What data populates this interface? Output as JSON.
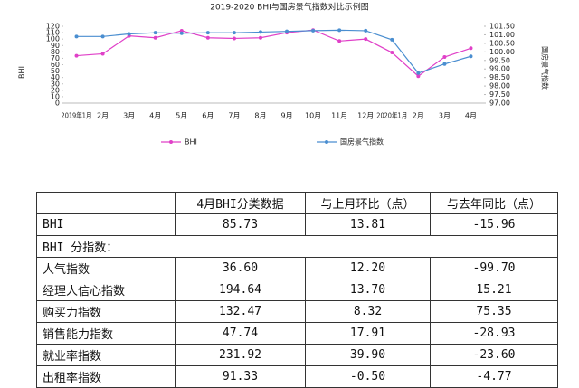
{
  "chart_data": {
    "type": "line",
    "title": "2019-2020 BHI与国房景气指数对比示例图",
    "y_label": "BHI",
    "y2_label": "国房景气指数",
    "categories": [
      "2019年1月",
      "2月",
      "3月",
      "4月",
      "5月",
      "6月",
      "7月",
      "8月",
      "9月",
      "10月",
      "11月",
      "12月",
      "2020年1月",
      "2月",
      "3月",
      "4月"
    ],
    "series": [
      {
        "name": "BHI",
        "color": "#e040c8",
        "values": [
          74,
          77,
          105,
          102,
          113,
          102,
          101,
          102,
          110,
          114,
          97,
          100,
          79,
          42,
          72,
          85.73
        ]
      },
      {
        "name": "国房景气指数",
        "color": "#4a8ed0",
        "axis": "y2",
        "values": [
          100.9,
          100.9,
          101.05,
          101.12,
          101.09,
          101.12,
          101.12,
          101.16,
          101.2,
          101.24,
          101.27,
          101.24,
          100.71,
          98.76,
          99.29,
          99.74
        ]
      }
    ],
    "ylim": [
      0,
      120
    ],
    "yticks": [
      0,
      10,
      20,
      30,
      40,
      50,
      60,
      70,
      80,
      90,
      100,
      110,
      120
    ],
    "y2lim": [
      97,
      101.5
    ],
    "y2ticks": [
      {
        "value": 97,
        "label": "97.00"
      },
      {
        "value": 97.5,
        "label": "97.50"
      },
      {
        "value": 98,
        "label": "98.00"
      },
      {
        "value": 98.5,
        "label": "98.50"
      },
      {
        "value": 99,
        "label": "99.00"
      },
      {
        "value": 99.5,
        "label": "99.50"
      },
      {
        "value": 100,
        "label": "100.00"
      },
      {
        "value": 100.5,
        "label": "100.50"
      },
      {
        "value": 101,
        "label": "101.00"
      },
      {
        "value": 101.5,
        "label": "101.50"
      }
    ],
    "grid": false,
    "legend": "bottom"
  },
  "table": {
    "header": [
      "4月BHI分类数据",
      "与上月环比（点）",
      "与去年同比（点）"
    ],
    "rows": [
      [
        "BHI",
        "85.73",
        "13.81",
        "-15.96"
      ],
      [
        "BHI 分指数："
      ],
      [
        "人气指数",
        "36.60",
        "12.20",
        "-99.70"
      ],
      [
        "经理人信心指数",
        "194.64",
        "13.70",
        "15.21"
      ],
      [
        "购买力指数",
        "132.47",
        "8.32",
        "75.35"
      ],
      [
        "销售能力指数",
        "47.74",
        "17.91",
        "-28.93"
      ],
      [
        "就业率指数",
        "231.92",
        "39.90",
        "-23.60"
      ],
      [
        "出租率指数",
        "91.33",
        "-0.50",
        "-4.77"
      ]
    ]
  }
}
